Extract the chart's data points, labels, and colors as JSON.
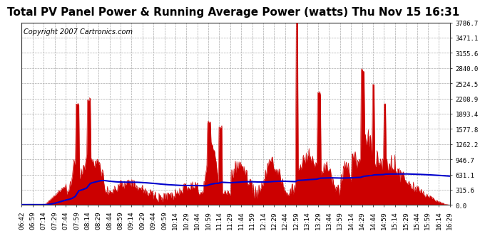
{
  "title": "Total PV Panel Power & Running Average Power (watts) Thu Nov 15 16:31",
  "copyright": "Copyright 2007 Cartronics.com",
  "bg_color": "#ffffff",
  "plot_bg_color": "#ffffff",
  "grid_color": "#aaaaaa",
  "fill_color": "#cc0000",
  "line_color": "#0000cc",
  "ytick_labels": [
    "0.0",
    "315.6",
    "631.1",
    "946.7",
    "1262.2",
    "1577.8",
    "1893.4",
    "2208.9",
    "2524.5",
    "2840.0",
    "3155.6",
    "3471.1",
    "3786.7"
  ],
  "ytick_values": [
    0.0,
    315.6,
    631.1,
    946.7,
    1262.2,
    1577.8,
    1893.4,
    2208.9,
    2524.5,
    2840.0,
    3155.6,
    3471.1,
    3786.7
  ],
  "ymax": 3786.7,
  "xtick_labels": [
    "06:42",
    "06:59",
    "07:14",
    "07:29",
    "07:44",
    "07:59",
    "08:14",
    "08:29",
    "08:44",
    "08:59",
    "09:14",
    "09:29",
    "09:44",
    "09:59",
    "10:14",
    "10:29",
    "10:44",
    "10:59",
    "11:14",
    "11:29",
    "11:44",
    "11:59",
    "12:14",
    "12:29",
    "12:44",
    "12:59",
    "13:14",
    "13:29",
    "13:44",
    "13:59",
    "14:14",
    "14:29",
    "14:44",
    "14:59",
    "15:14",
    "15:29",
    "15:44",
    "15:59",
    "16:14",
    "16:29"
  ],
  "title_fontsize": 11,
  "copyright_fontsize": 7,
  "tick_fontsize": 6.5
}
